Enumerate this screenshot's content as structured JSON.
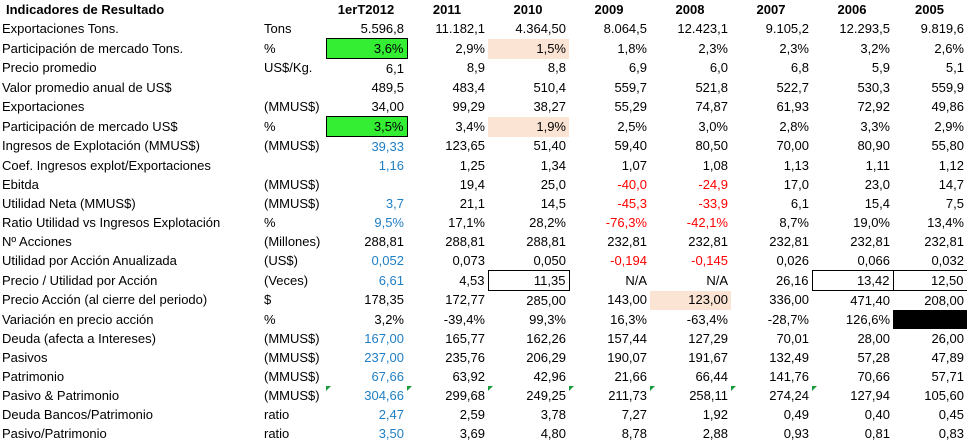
{
  "header": {
    "title": "Indicadores de Resultado",
    "years": [
      "1erT2012",
      "2011",
      "2010",
      "2009",
      "2008",
      "2007",
      "2006",
      "2005"
    ]
  },
  "rows": [
    {
      "label": "Exportaciones Tons.",
      "unit": "Tons",
      "values": [
        "5.596,8",
        "11.182,1",
        "4.364,50",
        "8.064,5",
        "12.423,1",
        "9.105,2",
        "12.293,5",
        "9.819,6"
      ]
    },
    {
      "label": "Participación de mercado Tons.",
      "unit": "%",
      "values": [
        "3,6%",
        "2,9%",
        "1,5%",
        "1,8%",
        "2,3%",
        "2,3%",
        "3,2%",
        "2,6%"
      ]
    },
    {
      "label": "Precio promedio",
      "unit": "US$/Kg.",
      "values": [
        "6,1",
        "8,9",
        "8,8",
        "6,9",
        "6,0",
        "6,8",
        "5,9",
        "5,1"
      ]
    },
    {
      "label": "Valor promedio anual de US$",
      "unit": "",
      "values": [
        "489,5",
        "483,4",
        "510,4",
        "559,7",
        "521,8",
        "522,7",
        "530,3",
        "559,9"
      ]
    },
    {
      "label": "Exportaciones",
      "unit": "(MMUS$)",
      "values": [
        "34,00",
        "99,29",
        "38,27",
        "55,29",
        "74,87",
        "61,93",
        "72,92",
        "49,86"
      ]
    },
    {
      "label": "Participación de mercado US$",
      "unit": "%",
      "values": [
        "3,5%",
        "3,4%",
        "1,9%",
        "2,5%",
        "3,0%",
        "2,8%",
        "3,3%",
        "2,9%"
      ]
    },
    {
      "label": "Ingresos de Explotación (MMUS$)",
      "unit": "(MMUS$)",
      "values": [
        "39,33",
        "123,65",
        "51,40",
        "59,40",
        "80,50",
        "70,00",
        "80,90",
        "55,80"
      ]
    },
    {
      "label": "Coef. Ingresos explot/Exportaciones",
      "unit": "",
      "values": [
        "1,16",
        "1,25",
        "1,34",
        "1,07",
        "1,08",
        "1,13",
        "1,11",
        "1,12"
      ]
    },
    {
      "label": "Ebitda",
      "unit": "(MMUS$)",
      "values": [
        "",
        "19,4",
        "25,0",
        "-40,0",
        "-24,9",
        "17,0",
        "23,0",
        "14,7"
      ]
    },
    {
      "label": "Utilidad Neta (MMUS$)",
      "unit": "(MMUS$)",
      "values": [
        "3,7",
        "21,1",
        "14,5",
        "-45,3",
        "-33,9",
        "6,1",
        "15,4",
        "7,5"
      ]
    },
    {
      "label": "Ratio Utilidad vs Ingresos Explotación",
      "unit": "%",
      "values": [
        "9,5%",
        "17,1%",
        "28,2%",
        "-76,3%",
        "-42,1%",
        "8,7%",
        "19,0%",
        "13,4%"
      ]
    },
    {
      "label": "Nº Acciones",
      "unit": "(Millones)",
      "values": [
        "288,81",
        "288,81",
        "288,81",
        "232,81",
        "232,81",
        "232,81",
        "232,81",
        "232,81"
      ]
    },
    {
      "label": "Utilidad por Acción Anualizada",
      "unit": "(US$)",
      "values": [
        "0,052",
        "0,073",
        "0,050",
        "-0,194",
        "-0,145",
        "0,026",
        "0,066",
        "0,032"
      ]
    },
    {
      "label": "Precio / Utilidad por Acción",
      "unit": "(Veces)",
      "values": [
        "6,61",
        "4,53",
        "11,35",
        "N/A",
        "N/A",
        "26,16",
        "13,42",
        "12,50"
      ]
    },
    {
      "label": "Precio Acción (al cierre del periodo)",
      "unit": "$",
      "values": [
        "178,35",
        "172,77",
        "285,00",
        "143,00",
        "123,00",
        "336,00",
        "471,40",
        "208,00"
      ]
    },
    {
      "label": "Variación en precio acción",
      "unit": "%",
      "values": [
        "3,2%",
        "-39,4%",
        "99,3%",
        "16,3%",
        "-63,4%",
        "-28,7%",
        "126,6%",
        ""
      ]
    },
    {
      "label": "Deuda (afecta a Intereses)",
      "unit": "(MMUS$)",
      "values": [
        "167,00",
        "165,77",
        "162,26",
        "157,44",
        "127,29",
        "70,01",
        "28,00",
        "26,00"
      ]
    },
    {
      "label": "Pasivos",
      "unit": "(MMUS$)",
      "values": [
        "237,00",
        "235,76",
        "206,29",
        "190,07",
        "191,67",
        "132,49",
        "57,28",
        "47,89"
      ]
    },
    {
      "label": "Patrimonio",
      "unit": "(MMUS$)",
      "values": [
        "67,66",
        "63,92",
        "42,96",
        "21,66",
        "66,44",
        "141,76",
        "70,66",
        "57,71"
      ]
    },
    {
      "label": "Pasivo & Patrimonio",
      "unit": "(MMUS$)",
      "values": [
        "304,66",
        "299,68",
        "249,25",
        "211,73",
        "258,11",
        "274,24",
        "127,94",
        "105,60"
      ]
    },
    {
      "label": "Deuda Bancos/Patrimonio",
      "unit": "ratio",
      "values": [
        "2,47",
        "2,59",
        "3,78",
        "7,27",
        "1,92",
        "0,49",
        "0,40",
        "0,45"
      ]
    },
    {
      "label": "Pasivo/Patrimonio",
      "unit": "ratio",
      "values": [
        "3,50",
        "3,69",
        "4,80",
        "8,78",
        "2,88",
        "0,93",
        "0,81",
        "0,83"
      ]
    }
  ],
  "colors": {
    "blue": "#1f7fc4",
    "red": "#ff0000",
    "green_fill": "#33ee33",
    "peach_fill": "#fce4d4",
    "comment_marker": "#1a9a3a"
  }
}
